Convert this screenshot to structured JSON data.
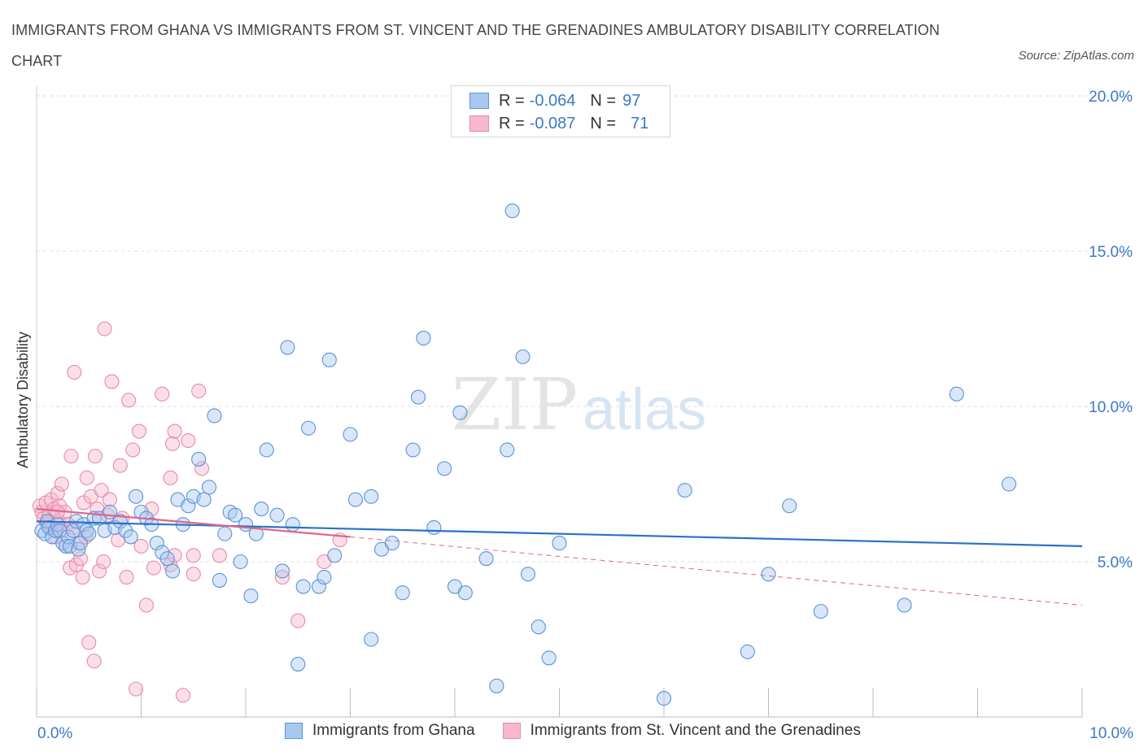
{
  "title": "IMMIGRANTS FROM GHANA VS IMMIGRANTS FROM ST. VINCENT AND THE GRENADINES AMBULATORY DISABILITY CORRELATION CHART",
  "source": "Source: ZipAtlas.com",
  "watermark": {
    "zip": "ZIP",
    "atlas": "atlas"
  },
  "legend": {
    "r_label": "R =",
    "n_label": "N =",
    "ghana": {
      "r": "-0.064",
      "n": "97"
    },
    "svg": {
      "r": "-0.087",
      "n": "71"
    }
  },
  "colors": {
    "ghana_fill": "#a8c8f0",
    "ghana_stroke": "#5b93d8",
    "ghana_line": "#2a72c8",
    "svg_fill": "#f7b8cb",
    "svg_stroke": "#e88aa8",
    "svg_line": "#e0648e",
    "tick_text": "#3a78c9"
  },
  "chart_data": {
    "type": "scatter",
    "title": "IMMIGRANTS FROM GHANA VS IMMIGRANTS FROM ST. VINCENT AND THE GRENADINES AMBULATORY DISABILITY CORRELATION CHART",
    "xlabel": "",
    "ylabel": "Ambulatory Disability",
    "xlim": [
      0,
      10
    ],
    "ylim": [
      0,
      20
    ],
    "x_tick_labels": [
      "0.0%",
      "10.0%"
    ],
    "y_ticks": [
      5,
      10,
      15,
      20
    ],
    "y_tick_labels": [
      "5.0%",
      "10.0%",
      "15.0%",
      "20.0%"
    ],
    "grid": true,
    "series": [
      {
        "name": "Immigrants from Ghana",
        "trend": {
          "x": [
            0,
            10
          ],
          "y": [
            6.3,
            5.5
          ]
        },
        "points": [
          [
            0.05,
            6.0
          ],
          [
            0.08,
            5.9
          ],
          [
            0.1,
            6.3
          ],
          [
            0.12,
            6.1
          ],
          [
            0.15,
            5.8
          ],
          [
            0.18,
            6.0
          ],
          [
            0.2,
            6.2
          ],
          [
            0.22,
            6.0
          ],
          [
            0.25,
            5.6
          ],
          [
            0.28,
            5.5
          ],
          [
            0.3,
            5.8
          ],
          [
            0.32,
            5.5
          ],
          [
            0.35,
            6.0
          ],
          [
            0.38,
            6.3
          ],
          [
            0.4,
            5.4
          ],
          [
            0.42,
            5.6
          ],
          [
            0.45,
            6.2
          ],
          [
            0.48,
            6.0
          ],
          [
            0.5,
            5.9
          ],
          [
            0.55,
            6.4
          ],
          [
            0.6,
            6.4
          ],
          [
            0.65,
            6.0
          ],
          [
            0.7,
            6.6
          ],
          [
            0.75,
            6.1
          ],
          [
            0.8,
            6.3
          ],
          [
            0.85,
            6.0
          ],
          [
            0.9,
            5.8
          ],
          [
            0.95,
            7.1
          ],
          [
            1.0,
            6.6
          ],
          [
            1.05,
            6.4
          ],
          [
            1.1,
            6.2
          ],
          [
            1.15,
            5.6
          ],
          [
            1.2,
            5.3
          ],
          [
            1.25,
            5.1
          ],
          [
            1.3,
            4.7
          ],
          [
            1.35,
            7.0
          ],
          [
            1.4,
            6.2
          ],
          [
            1.45,
            6.8
          ],
          [
            1.5,
            7.1
          ],
          [
            1.55,
            8.3
          ],
          [
            1.6,
            7.0
          ],
          [
            1.65,
            7.4
          ],
          [
            1.7,
            9.7
          ],
          [
            1.75,
            4.4
          ],
          [
            1.8,
            5.9
          ],
          [
            1.85,
            6.6
          ],
          [
            1.9,
            6.5
          ],
          [
            1.95,
            5.0
          ],
          [
            2.0,
            6.2
          ],
          [
            2.05,
            3.9
          ],
          [
            2.1,
            5.9
          ],
          [
            2.15,
            6.7
          ],
          [
            2.2,
            8.6
          ],
          [
            2.3,
            6.5
          ],
          [
            2.35,
            4.7
          ],
          [
            2.4,
            11.9
          ],
          [
            2.45,
            6.2
          ],
          [
            2.5,
            1.7
          ],
          [
            2.55,
            4.2
          ],
          [
            2.6,
            9.3
          ],
          [
            2.7,
            4.2
          ],
          [
            2.75,
            4.5
          ],
          [
            2.8,
            11.5
          ],
          [
            2.85,
            5.2
          ],
          [
            3.0,
            9.1
          ],
          [
            3.05,
            7.0
          ],
          [
            3.2,
            7.1
          ],
          [
            3.3,
            5.4
          ],
          [
            3.4,
            5.6
          ],
          [
            3.5,
            4.0
          ],
          [
            3.6,
            8.6
          ],
          [
            3.65,
            10.3
          ],
          [
            3.7,
            12.2
          ],
          [
            3.8,
            6.1
          ],
          [
            3.9,
            8.0
          ],
          [
            4.0,
            4.2
          ],
          [
            4.05,
            9.8
          ],
          [
            4.1,
            4.0
          ],
          [
            4.3,
            5.1
          ],
          [
            4.4,
            1.0
          ],
          [
            4.5,
            8.6
          ],
          [
            4.65,
            11.6
          ],
          [
            4.7,
            4.6
          ],
          [
            4.8,
            2.9
          ],
          [
            4.9,
            1.9
          ],
          [
            5.0,
            5.6
          ],
          [
            4.55,
            16.3
          ],
          [
            6.2,
            7.3
          ],
          [
            6.8,
            2.1
          ],
          [
            7.0,
            4.6
          ],
          [
            7.2,
            6.8
          ],
          [
            7.5,
            3.4
          ],
          [
            8.3,
            3.6
          ],
          [
            8.8,
            10.4
          ],
          [
            9.3,
            7.5
          ],
          [
            6.0,
            0.6
          ],
          [
            3.2,
            2.5
          ]
        ]
      },
      {
        "name": "Immigrants from St. Vincent and the Grenadines",
        "trend": {
          "x": [
            0,
            3.0
          ],
          "y": [
            6.7,
            5.8
          ]
        },
        "trend_dashed": {
          "x": [
            3.0,
            10
          ],
          "y": [
            5.8,
            3.6
          ]
        },
        "points": [
          [
            0.03,
            6.8
          ],
          [
            0.05,
            6.6
          ],
          [
            0.07,
            6.4
          ],
          [
            0.09,
            6.9
          ],
          [
            0.1,
            6.2
          ],
          [
            0.12,
            6.5
          ],
          [
            0.14,
            7.0
          ],
          [
            0.15,
            6.1
          ],
          [
            0.17,
            6.7
          ],
          [
            0.18,
            5.8
          ],
          [
            0.2,
            7.2
          ],
          [
            0.21,
            6.3
          ],
          [
            0.22,
            6.8
          ],
          [
            0.24,
            7.5
          ],
          [
            0.25,
            6.0
          ],
          [
            0.27,
            6.6
          ],
          [
            0.28,
            5.5
          ],
          [
            0.3,
            6.2
          ],
          [
            0.32,
            4.8
          ],
          [
            0.33,
            8.4
          ],
          [
            0.35,
            6.1
          ],
          [
            0.36,
            11.1
          ],
          [
            0.38,
            4.9
          ],
          [
            0.4,
            5.6
          ],
          [
            0.42,
            5.1
          ],
          [
            0.44,
            4.5
          ],
          [
            0.45,
            6.9
          ],
          [
            0.47,
            5.8
          ],
          [
            0.48,
            7.7
          ],
          [
            0.5,
            2.4
          ],
          [
            0.52,
            7.1
          ],
          [
            0.55,
            1.8
          ],
          [
            0.56,
            8.4
          ],
          [
            0.58,
            6.7
          ],
          [
            0.6,
            4.7
          ],
          [
            0.62,
            7.3
          ],
          [
            0.64,
            5.0
          ],
          [
            0.65,
            12.5
          ],
          [
            0.68,
            6.5
          ],
          [
            0.7,
            7.0
          ],
          [
            0.72,
            10.8
          ],
          [
            0.78,
            5.7
          ],
          [
            0.8,
            8.1
          ],
          [
            0.82,
            6.4
          ],
          [
            0.86,
            4.5
          ],
          [
            0.88,
            10.2
          ],
          [
            0.92,
            8.6
          ],
          [
            0.95,
            0.9
          ],
          [
            0.98,
            9.2
          ],
          [
            1.0,
            5.5
          ],
          [
            1.05,
            3.6
          ],
          [
            1.1,
            6.7
          ],
          [
            1.12,
            4.8
          ],
          [
            1.2,
            10.4
          ],
          [
            1.28,
            7.7
          ],
          [
            1.3,
            8.8
          ],
          [
            1.32,
            9.2
          ],
          [
            1.4,
            0.7
          ],
          [
            1.45,
            8.9
          ],
          [
            1.5,
            4.6
          ],
          [
            1.55,
            10.5
          ],
          [
            1.58,
            8.0
          ],
          [
            1.28,
            4.9
          ],
          [
            1.32,
            5.2
          ],
          [
            1.5,
            5.2
          ],
          [
            1.75,
            5.2
          ],
          [
            2.35,
            4.5
          ],
          [
            2.5,
            3.1
          ],
          [
            2.75,
            5.0
          ],
          [
            2.9,
            5.7
          ],
          [
            0.2,
            6.6
          ]
        ]
      }
    ]
  }
}
